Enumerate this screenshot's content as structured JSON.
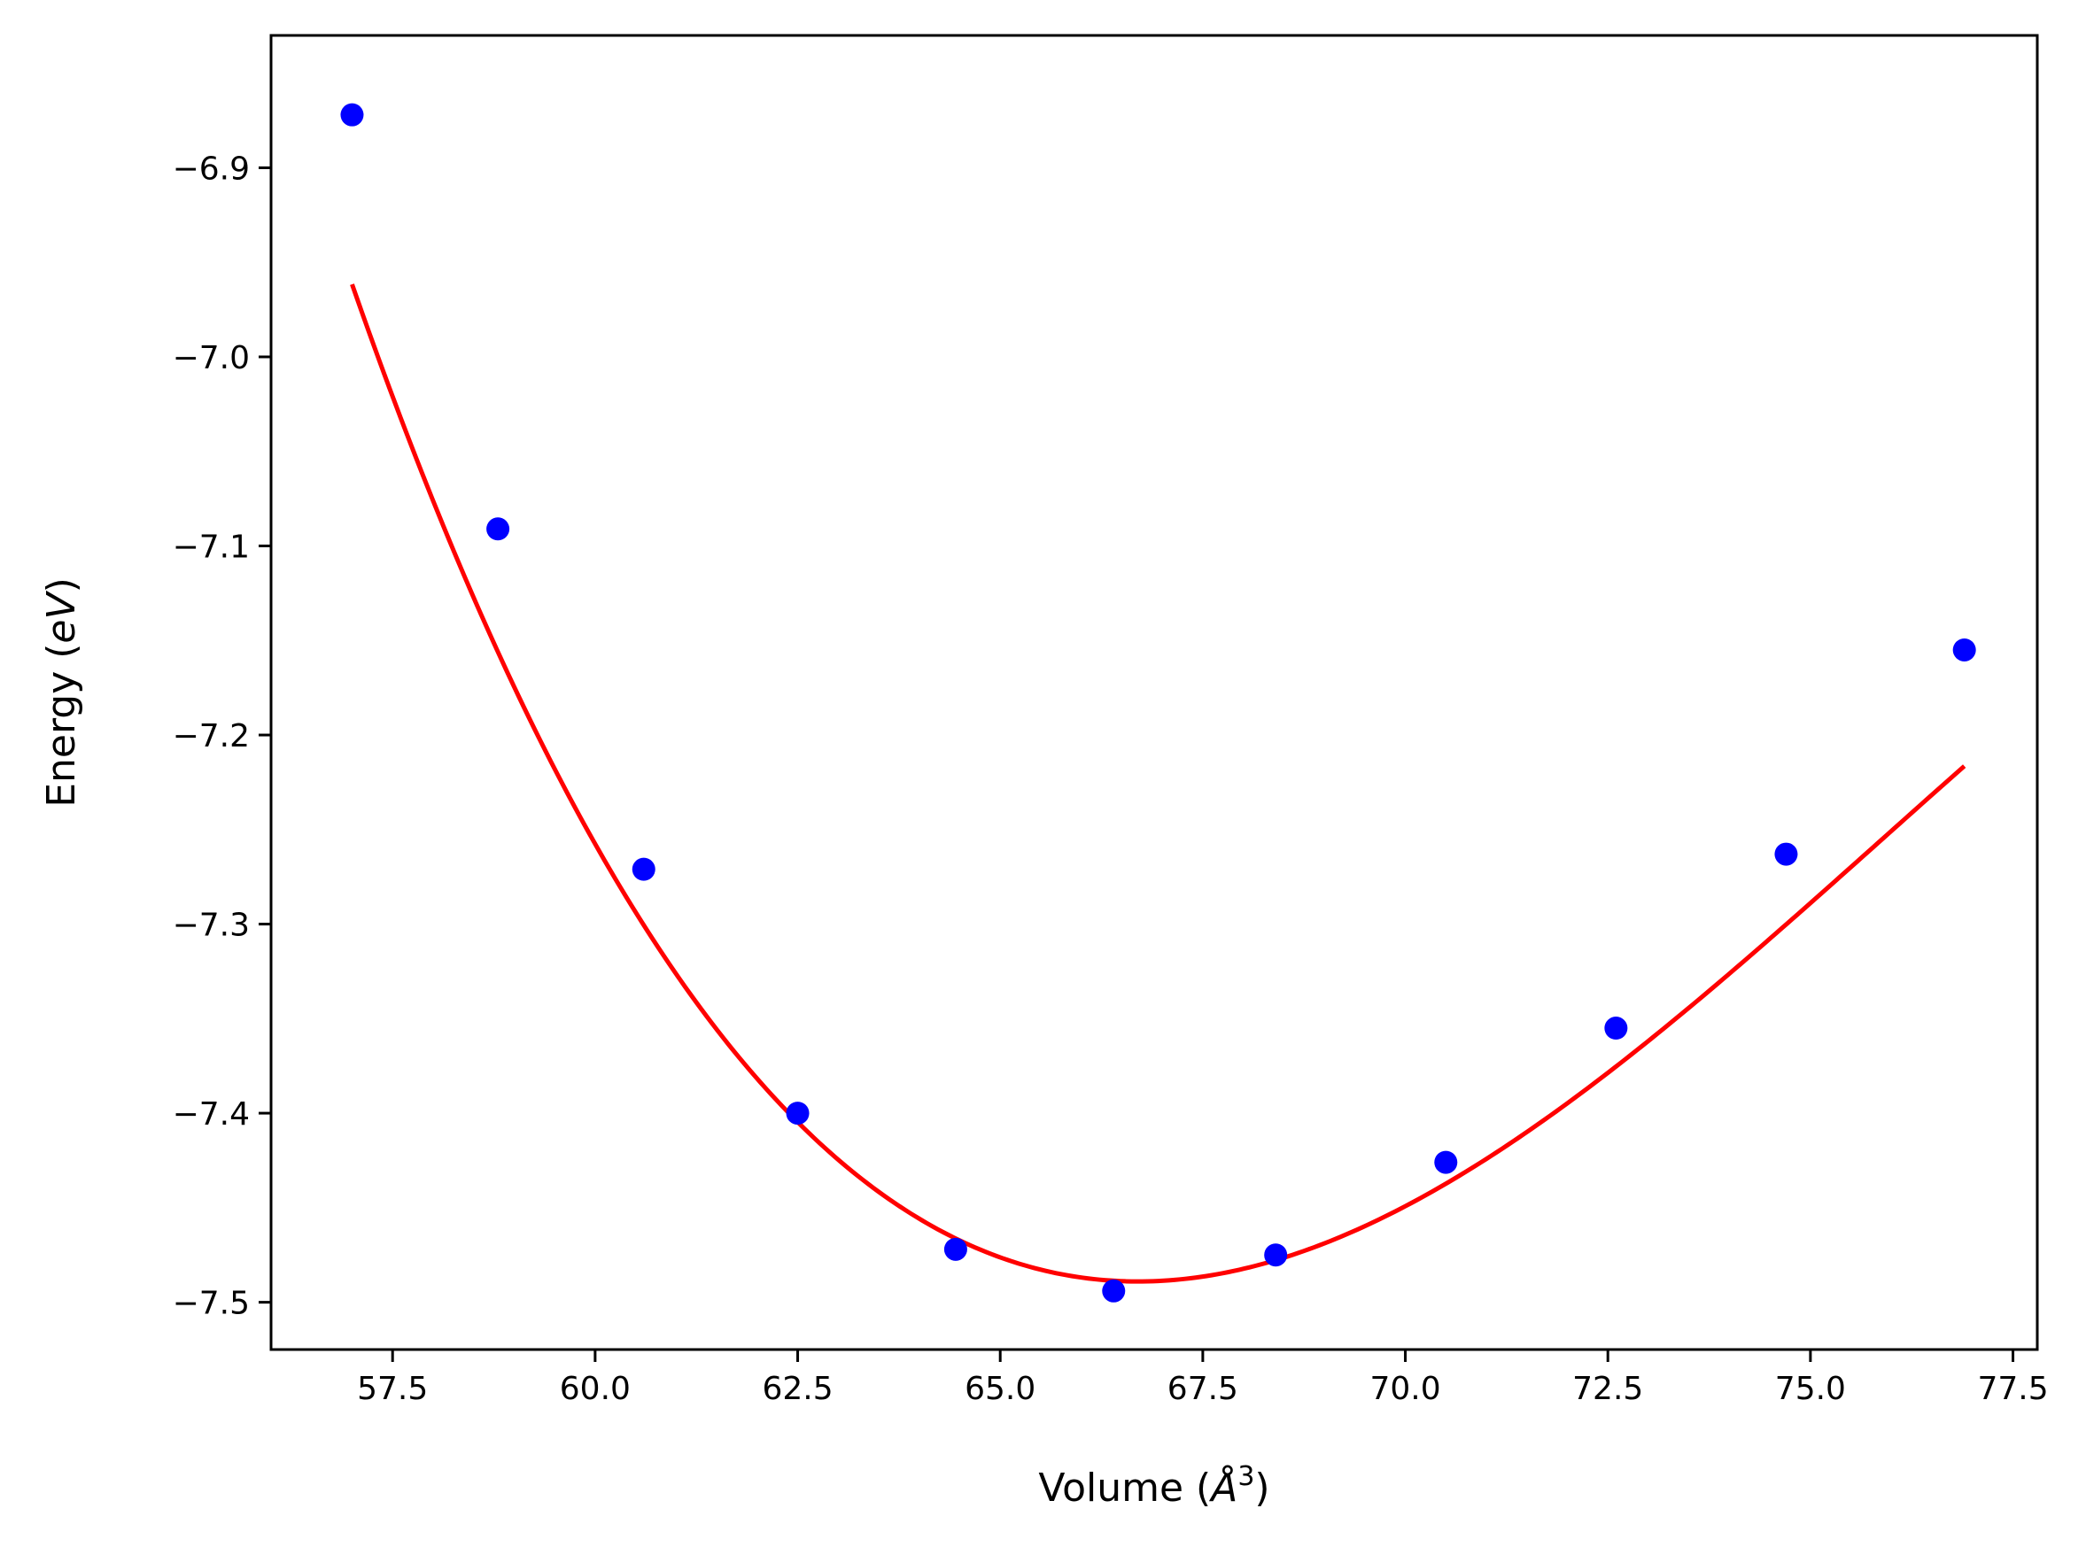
{
  "chart_data": {
    "type": "scatter",
    "xlabel": "Volume (Å³)",
    "ylabel": "Energy (eV)",
    "xlabel_parts": {
      "prefix": "Volume (",
      "unit_base": "Å",
      "unit_sup": "3",
      "suffix": ")"
    },
    "ylabel_parts": {
      "prefix": "Energy (",
      "unit": "eV",
      "suffix": ")"
    },
    "xlim": [
      56.0,
      77.8
    ],
    "ylim": [
      -7.525,
      -6.83
    ],
    "xticks": [
      57.5,
      60.0,
      62.5,
      65.0,
      67.5,
      70.0,
      72.5,
      75.0,
      77.5
    ],
    "xtick_labels": [
      "57.5",
      "60.0",
      "62.5",
      "65.0",
      "67.5",
      "70.0",
      "72.5",
      "75.0",
      "77.5"
    ],
    "yticks": [
      -6.9,
      -7.0,
      -7.1,
      -7.2,
      -7.3,
      -7.4,
      -7.5
    ],
    "ytick_labels": [
      "−6.9",
      "−7.0",
      "−7.1",
      "−7.2",
      "−7.3",
      "−7.4",
      "−7.5"
    ],
    "grid": false,
    "series": [
      {
        "kind": "points",
        "color": "#0000ff",
        "x": [
          57.0,
          58.8,
          60.6,
          62.5,
          64.45,
          66.4,
          68.4,
          70.5,
          72.6,
          74.7,
          76.9
        ],
        "y": [
          -6.872,
          -7.091,
          -7.271,
          -7.4,
          -7.472,
          -7.494,
          -7.475,
          -7.426,
          -7.355,
          -7.263,
          -7.155
        ]
      },
      {
        "kind": "fit-line",
        "color": "#ff0000",
        "fit": {
          "x_start": 57.0,
          "x_end": 76.9,
          "x_min": 66.7,
          "y_min": -7.489,
          "curvature": 0.00415,
          "asymmetry": 0.00015
        }
      }
    ]
  }
}
